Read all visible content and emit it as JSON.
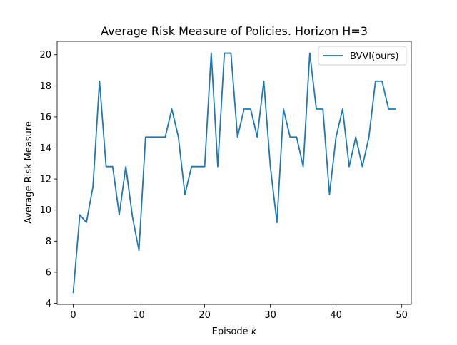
{
  "chart_data": {
    "type": "line",
    "title": "Average Risk Measure of Policies. Horizon H=3",
    "xlabel": "Episode",
    "xlabel_var": "k",
    "ylabel": "Average Risk Measure",
    "xlim": [
      -2.45,
      51.45
    ],
    "ylim": [
      3.93,
      20.86
    ],
    "xticks": [
      0,
      10,
      20,
      30,
      40,
      50
    ],
    "yticks": [
      4,
      6,
      8,
      10,
      12,
      14,
      16,
      18,
      20
    ],
    "grid": false,
    "legend_position": "top-right",
    "series": [
      {
        "name": "BVVI(ours)",
        "color": "#1f77b4",
        "x": [
          0,
          1,
          2,
          3,
          4,
          5,
          6,
          7,
          8,
          9,
          10,
          11,
          12,
          13,
          14,
          15,
          16,
          17,
          18,
          19,
          20,
          21,
          22,
          23,
          24,
          25,
          26,
          27,
          28,
          29,
          30,
          31,
          32,
          33,
          34,
          35,
          36,
          37,
          38,
          39,
          40,
          41,
          42,
          43,
          44,
          45,
          46,
          47,
          48,
          49
        ],
        "values": [
          4.7,
          9.7,
          9.2,
          11.5,
          18.3,
          12.8,
          12.8,
          9.7,
          12.8,
          9.6,
          7.4,
          14.7,
          14.7,
          14.7,
          14.7,
          16.5,
          14.7,
          11.0,
          12.8,
          12.8,
          12.8,
          20.1,
          12.8,
          20.1,
          20.1,
          14.7,
          16.5,
          16.5,
          14.7,
          18.3,
          12.8,
          9.2,
          16.5,
          14.7,
          14.7,
          12.8,
          20.1,
          16.5,
          16.5,
          11.0,
          14.7,
          16.5,
          12.8,
          14.7,
          12.8,
          14.7,
          18.3,
          18.3,
          16.5,
          16.5
        ]
      }
    ]
  }
}
